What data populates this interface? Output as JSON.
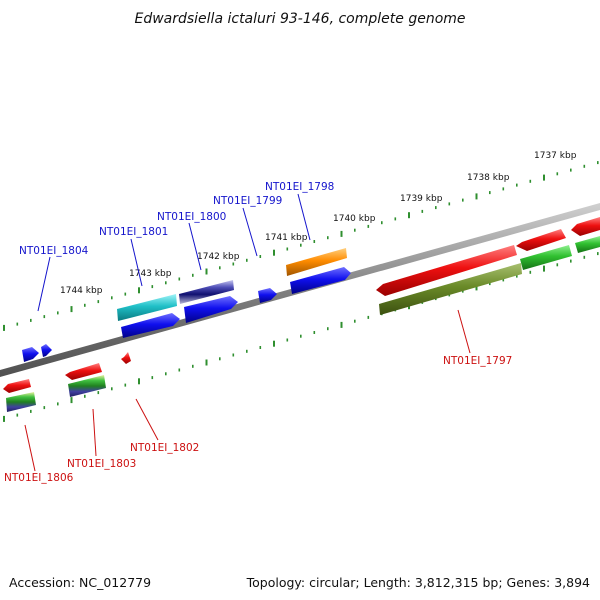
{
  "title": "Edwardsiella ictaluri 93-146, complete genome",
  "footer": {
    "accession": "Accession: NC_012779",
    "summary": "Topology: circular; Length: 3,812,315 bp; Genes: 3,894"
  },
  "colors": {
    "backbone": "#8a8a8a",
    "ticks": "#2f8f2f",
    "label_plus": "#1515cc",
    "label_minus": "#cc1111"
  },
  "ticks": {
    "labels": [
      "1737 kbp",
      "1738 kbp",
      "1739 kbp",
      "1740 kbp",
      "1741 kbp",
      "1742 kbp",
      "1743 kbp",
      "1744 kbp"
    ]
  },
  "gene_labels": [
    {
      "text": "NT01EI_1798",
      "strand": "plus"
    },
    {
      "text": "NT01EI_1799",
      "strand": "plus"
    },
    {
      "text": "NT01EI_1800",
      "strand": "plus"
    },
    {
      "text": "NT01EI_1801",
      "strand": "plus"
    },
    {
      "text": "NT01EI_1804",
      "strand": "plus"
    },
    {
      "text": "NT01EI_1797",
      "strand": "minus"
    },
    {
      "text": "NT01EI_1802",
      "strand": "minus"
    },
    {
      "text": "NT01EI_1803",
      "strand": "minus"
    },
    {
      "text": "NT01EI_1806",
      "strand": "minus"
    }
  ],
  "features": [
    {
      "name": "orange-cds",
      "color": "#ff8c00"
    },
    {
      "name": "blue-cds",
      "color": "#1010ee"
    },
    {
      "name": "cyan-cds",
      "color": "#20c0c8"
    },
    {
      "name": "slate-cds",
      "color": "#5050b8"
    },
    {
      "name": "red-cds",
      "color": "#ee1010"
    },
    {
      "name": "green-cds",
      "color": "#30c030"
    },
    {
      "name": "olive-cds",
      "color": "#6a8a28"
    }
  ]
}
